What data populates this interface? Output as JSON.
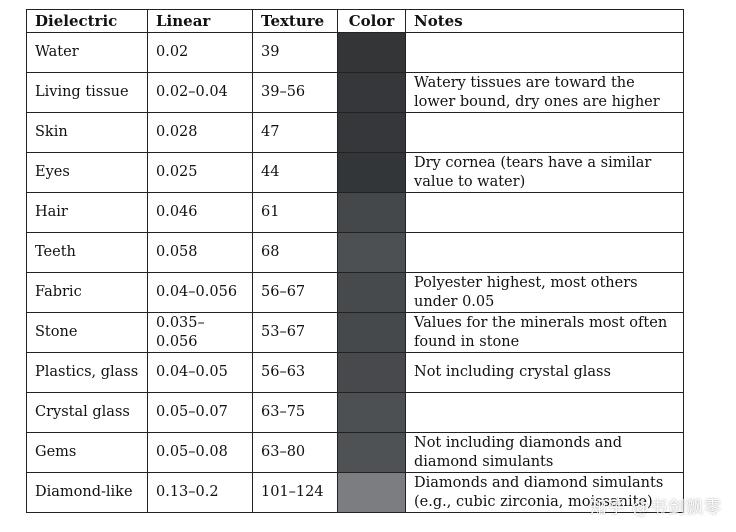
{
  "table": {
    "headers": [
      "Dielectric",
      "Linear",
      "Texture",
      "Color",
      "Notes"
    ],
    "rows": [
      {
        "dielectric": "Water",
        "linear": "0.02",
        "texture": "39",
        "color": "#333536",
        "notes": ""
      },
      {
        "dielectric": "Living tissue",
        "linear": "0.02–0.04",
        "texture": "39–56",
        "color": "#35373a",
        "notes": "Watery tissues are toward the lower bound, dry ones are higher"
      },
      {
        "dielectric": "Skin",
        "linear": "0.028",
        "texture": "47",
        "color": "#35373a",
        "notes": ""
      },
      {
        "dielectric": "Eyes",
        "linear": "0.025",
        "texture": "44",
        "color": "#333638",
        "notes": "Dry cornea (tears have a similar value to water)"
      },
      {
        "dielectric": "Hair",
        "linear": "0.046",
        "texture": "61",
        "color": "#45484b",
        "notes": ""
      },
      {
        "dielectric": "Teeth",
        "linear": "0.058",
        "texture": "68",
        "color": "#4d5053",
        "notes": ""
      },
      {
        "dielectric": "Fabric",
        "linear": "0.04–0.056",
        "texture": "56–67",
        "color": "#474a4d",
        "notes": "Polyester highest, most others under 0.05"
      },
      {
        "dielectric": "Stone",
        "linear": "0.035–0.056",
        "texture": "53–67",
        "color": "#46494c",
        "notes": "Values for the minerals most often found in stone"
      },
      {
        "dielectric": "Plastics, glass",
        "linear": "0.04–0.05",
        "texture": "56–63",
        "color": "#47494c",
        "notes": "Not including crystal glass"
      },
      {
        "dielectric": "Crystal glass",
        "linear": "0.05–0.07",
        "texture": "63–75",
        "color": "#4d5053",
        "notes": ""
      },
      {
        "dielectric": "Gems",
        "linear": "0.05–0.08",
        "texture": "63–80",
        "color": "#4f5255",
        "notes": "Not including diamonds and diamond simulants"
      },
      {
        "dielectric": "Diamond-like",
        "linear": "0.13–0.2",
        "texture": "101–124",
        "color": "#7b7d80",
        "notes": "Diamonds and diamond simulants (e.g., cubic zirconia, moissanite)"
      }
    ]
  },
  "watermark": "知乎 @书剑飘零"
}
